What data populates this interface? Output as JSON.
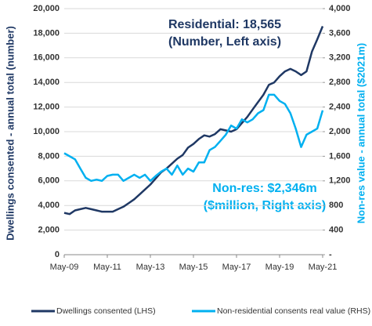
{
  "chart_data": {
    "type": "line",
    "annotations": [
      "Residential: 18,565",
      "(Number, Left axis)",
      "Non-res: $2,346m",
      "($million, Right axis)"
    ],
    "y_label": "Dwellings consented - annual total (number)",
    "y2_label": "Non-res value - annual total ($2021m)",
    "categories": [
      "May-09",
      null,
      null,
      null,
      null,
      null,
      null,
      null,
      "May-11",
      null,
      null,
      null,
      null,
      null,
      null,
      null,
      "May-13",
      null,
      null,
      null,
      null,
      null,
      null,
      null,
      "May-15",
      null,
      null,
      null,
      null,
      null,
      null,
      null,
      "May-17",
      null,
      null,
      null,
      null,
      null,
      null,
      null,
      "May-19",
      null,
      null,
      null,
      null,
      null,
      null,
      null,
      "May-21"
    ],
    "series": [
      {
        "name": "Dwellings consented (LHS)",
        "color": "#1f3864",
        "axis": "y",
        "values": [
          3400,
          3300,
          3600,
          3700,
          3800,
          3700,
          3600,
          3500,
          3500,
          3500,
          3700,
          3900,
          4200,
          4500,
          4900,
          5300,
          5700,
          6200,
          6700,
          7000,
          7400,
          7800,
          8100,
          8700,
          9000,
          9400,
          9700,
          9600,
          9800,
          10200,
          10100,
          10000,
          10200,
          10700,
          11200,
          11800,
          12400,
          13000,
          13800,
          14000,
          14500,
          14900,
          15100,
          14900,
          14600,
          14900,
          16500,
          17500,
          18565
        ]
      },
      {
        "name": "Non-residential consents real value (RHS)",
        "color": "#00b0f0",
        "axis": "y2",
        "values": [
          1650,
          1600,
          1550,
          1400,
          1250,
          1200,
          1220,
          1200,
          1280,
          1300,
          1300,
          1200,
          1250,
          1300,
          1250,
          1300,
          1200,
          1280,
          1350,
          1400,
          1300,
          1450,
          1300,
          1400,
          1350,
          1500,
          1500,
          1700,
          1750,
          1850,
          1950,
          2100,
          2050,
          2200,
          2150,
          2200,
          2300,
          2350,
          2600,
          2600,
          2500,
          2450,
          2300,
          2050,
          1750,
          1950,
          2000,
          2050,
          2346
        ]
      }
    ],
    "ylim": [
      0,
      20000
    ],
    "yticks": [
      0,
      {
        "value": 2000,
        "label": "2,000"
      },
      {
        "value": 4000,
        "label": "4,000"
      },
      {
        "value": 6000,
        "label": "6,000"
      },
      {
        "value": 8000,
        "label": "8,000"
      },
      {
        "value": 10000,
        "label": "10,000"
      },
      {
        "value": 12000,
        "label": "12,000"
      },
      {
        "value": 14000,
        "label": "14,000"
      },
      {
        "value": 16000,
        "label": "16,000"
      },
      {
        "value": 18000,
        "label": "18,000"
      },
      {
        "value": 20000,
        "label": "20,000"
      }
    ],
    "y2lim": [
      0,
      4000
    ],
    "y2ticks": [
      {
        "value": 0,
        "label": "-"
      },
      400,
      800,
      {
        "value": 1200,
        "label": "1,200"
      },
      {
        "value": 1600,
        "label": "1,600"
      },
      {
        "value": 2000,
        "label": "2,000"
      },
      {
        "value": 2400,
        "label": "2,400"
      },
      {
        "value": 2800,
        "label": "2,800"
      },
      {
        "value": 3200,
        "label": "3,200"
      },
      {
        "value": 3600,
        "label": "3,600"
      },
      {
        "value": 4000,
        "label": "4,000"
      }
    ],
    "grid": true,
    "legend": "bottom"
  }
}
